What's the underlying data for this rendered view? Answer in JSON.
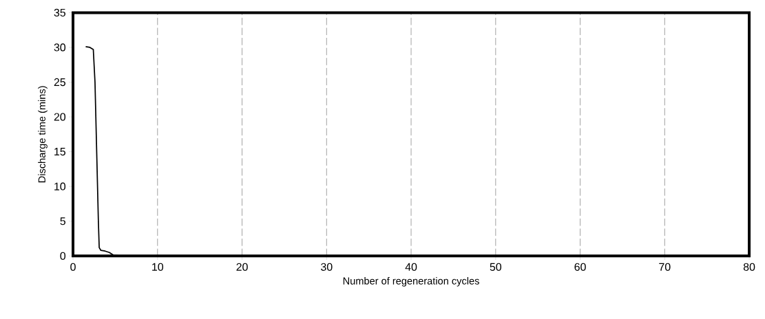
{
  "chart_data": {
    "type": "line",
    "xlabel": "Number of regeneration cycles",
    "ylabel": "Discharge time (mins)",
    "series": [
      {
        "color": "#000000",
        "x": [
          1.5,
          2.0,
          2.4,
          2.6,
          2.8,
          3.0,
          3.1,
          3.3,
          3.8,
          4.3,
          4.8,
          6,
          10,
          20,
          40,
          60,
          80
        ],
        "values": [
          30.1,
          30.0,
          29.7,
          25,
          15,
          5,
          1.2,
          0.8,
          0.7,
          0.5,
          0.1,
          0,
          0,
          0,
          0,
          0,
          0
        ]
      }
    ],
    "xlim": [
      0,
      80
    ],
    "ylim": [
      0,
      35
    ],
    "xticks": [
      0,
      10,
      20,
      30,
      40,
      50,
      60,
      70,
      80
    ],
    "yticks": [
      0,
      5,
      10,
      15,
      20,
      25,
      30,
      35
    ],
    "grid": "x",
    "marker": "none",
    "line_style": "solid"
  }
}
